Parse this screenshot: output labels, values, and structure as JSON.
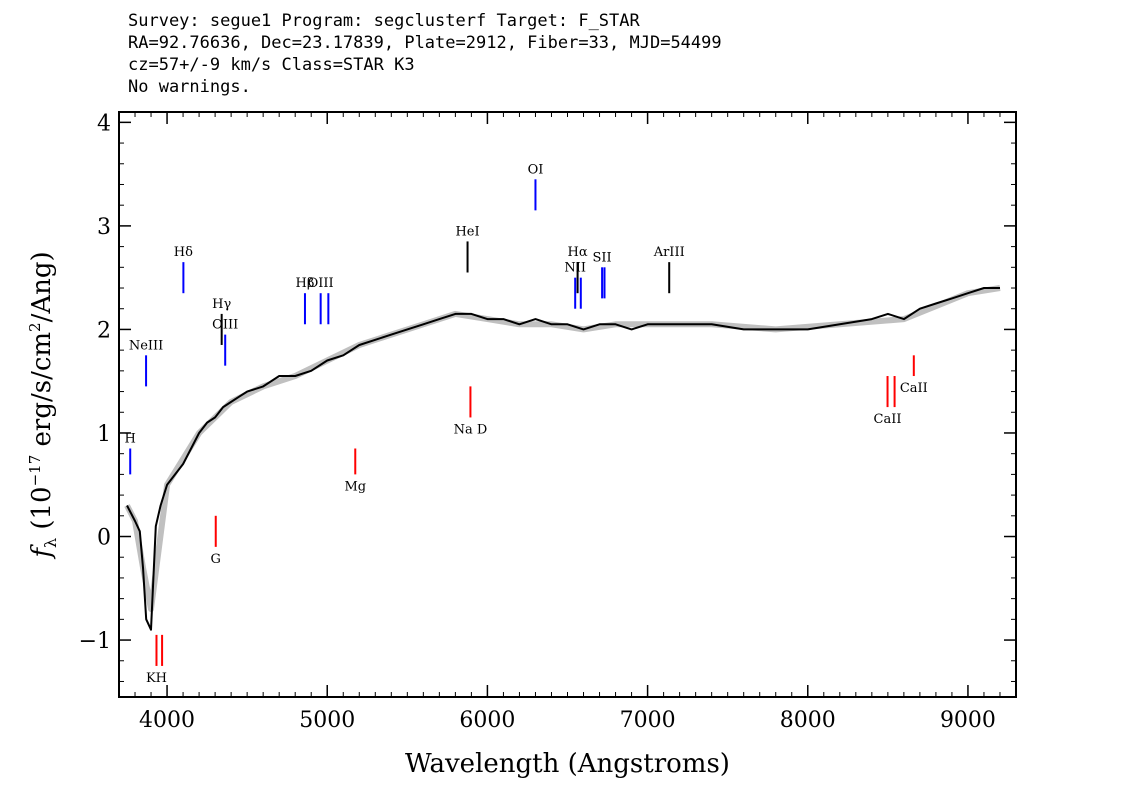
{
  "header": {
    "line1": "Survey: segue1 Program: segclusterf Target: F_STAR",
    "line2": "RA=92.76636, Dec=23.17839, Plate=2912, Fiber=33, MJD=54499",
    "line3": "cz=57+/-9 km/s Class=STAR K3",
    "line4": "No warnings."
  },
  "chart_data": {
    "type": "line",
    "xlabel": "Wavelength (Angstroms)",
    "ylabel": "f_λ (10^-17 erg/s/cm^2/Ang)",
    "xlim": [
      3700,
      9300
    ],
    "ylim": [
      -1.55,
      4.1
    ],
    "x_ticks": [
      4000,
      5000,
      6000,
      7000,
      8000,
      9000
    ],
    "y_ticks": [
      -1,
      0,
      1,
      2,
      3,
      4
    ],
    "grid": false,
    "series": [
      {
        "color": "#000000",
        "x": [
          3750,
          3800,
          3830,
          3850,
          3870,
          3900,
          3930,
          3960,
          4000,
          4050,
          4100,
          4150,
          4200,
          4250,
          4300,
          4350,
          4400,
          4450,
          4500,
          4600,
          4700,
          4800,
          4900,
          5000,
          5100,
          5200,
          5300,
          5400,
          5500,
          5600,
          5700,
          5800,
          5900,
          6000,
          6100,
          6200,
          6300,
          6400,
          6500,
          6600,
          6700,
          6800,
          6900,
          7000,
          7200,
          7400,
          7600,
          7800,
          8000,
          8200,
          8400,
          8500,
          8600,
          8700,
          8800,
          8900,
          9000,
          9100,
          9200
        ],
        "y": [
          0.3,
          0.15,
          0.05,
          -0.3,
          -0.8,
          -0.9,
          0.1,
          0.3,
          0.5,
          0.6,
          0.7,
          0.85,
          1.0,
          1.1,
          1.15,
          1.25,
          1.3,
          1.35,
          1.4,
          1.45,
          1.55,
          1.55,
          1.6,
          1.7,
          1.75,
          1.85,
          1.9,
          1.95,
          2.0,
          2.05,
          2.1,
          2.15,
          2.15,
          2.1,
          2.1,
          2.05,
          2.1,
          2.05,
          2.05,
          2.0,
          2.05,
          2.05,
          2.0,
          2.05,
          2.05,
          2.05,
          2.0,
          2.0,
          2.0,
          2.05,
          2.1,
          2.15,
          2.1,
          2.2,
          2.25,
          2.3,
          2.35,
          2.4,
          2.4
        ]
      },
      {
        "color": "#c0c0c0",
        "x": [
          3750,
          3800,
          3850,
          3900,
          4000,
          4200,
          4400,
          4600,
          4800,
          5000,
          5200,
          5400,
          5600,
          5800,
          6000,
          6200,
          6400,
          6600,
          6800,
          7000,
          7400,
          7800,
          8200,
          8600,
          9000,
          9200
        ],
        "y": [
          0.3,
          0.15,
          -0.3,
          -0.7,
          0.5,
          1.0,
          1.3,
          1.45,
          1.55,
          1.7,
          1.85,
          1.95,
          2.05,
          2.15,
          2.1,
          2.05,
          2.05,
          2.0,
          2.05,
          2.05,
          2.05,
          2.0,
          2.05,
          2.1,
          2.35,
          2.4
        ]
      }
    ],
    "line_labels": [
      {
        "label": "H",
        "x": 3770,
        "y_top": 0.85,
        "y_bottom": 0.6,
        "color": "#0000ff"
      },
      {
        "label": "NeIII",
        "x": 3869,
        "y_top": 1.75,
        "y_bottom": 1.45,
        "color": "#0000ff"
      },
      {
        "label": "Hδ",
        "x": 4102,
        "y_top": 2.65,
        "y_bottom": 2.35,
        "color": "#0000ff"
      },
      {
        "label": "Hγ",
        "x": 4341,
        "y_top": 2.15,
        "y_bottom": 1.85,
        "color": "#000000"
      },
      {
        "label": "OIII",
        "x": 4363,
        "y_top": 1.95,
        "y_bottom": 1.65,
        "color": "#0000ff"
      },
      {
        "label": "Hβ",
        "x": 4861,
        "y_top": 2.35,
        "y_bottom": 2.05,
        "color": "#0000ff"
      },
      {
        "label": "OIII",
        "x": 4959,
        "y_top": 2.35,
        "y_bottom": 2.05,
        "color": "#0000ff"
      },
      {
        "label": "OIII",
        "x": 5007,
        "y_top": 2.35,
        "y_bottom": 2.05,
        "color": "#0000ff"
      },
      {
        "label": "HeI",
        "x": 5876,
        "y_top": 2.85,
        "y_bottom": 2.55,
        "color": "#000000"
      },
      {
        "label": "OI",
        "x": 6300,
        "y_top": 3.45,
        "y_bottom": 3.15,
        "color": "#0000ff"
      },
      {
        "label": "NII",
        "x": 6548,
        "y_top": 2.5,
        "y_bottom": 2.2,
        "color": "#0000ff"
      },
      {
        "label": "Hα",
        "x": 6563,
        "y_top": 2.65,
        "y_bottom": 2.35,
        "color": "#000000"
      },
      {
        "label": "NII",
        "x": 6583,
        "y_top": 2.5,
        "y_bottom": 2.2,
        "color": "#0000ff"
      },
      {
        "label": "SII",
        "x": 6716,
        "y_top": 2.6,
        "y_bottom": 2.3,
        "color": "#0000ff"
      },
      {
        "label": "SII",
        "x": 6731,
        "y_top": 2.6,
        "y_bottom": 2.3,
        "color": "#0000ff"
      },
      {
        "label": "ArIII",
        "x": 7135,
        "y_top": 2.65,
        "y_bottom": 2.35,
        "color": "#000000"
      },
      {
        "label": "KH",
        "x": 3934,
        "y_top": -0.95,
        "y_bottom": -1.25,
        "color": "#ff0000"
      },
      {
        "label": "KH",
        "x": 3969,
        "y_top": -0.95,
        "y_bottom": -1.25,
        "color": "#ff0000"
      },
      {
        "label": "G",
        "x": 4304,
        "y_top": 0.2,
        "y_bottom": -0.1,
        "color": "#ff0000"
      },
      {
        "label": "Mg",
        "x": 5175,
        "y_top": 0.85,
        "y_bottom": 0.6,
        "color": "#ff0000"
      },
      {
        "label": "Na D",
        "x": 5894,
        "y_top": 1.45,
        "y_bottom": 1.15,
        "color": "#ff0000"
      },
      {
        "label": "CaII",
        "x": 8498,
        "y_top": 1.55,
        "y_bottom": 1.25,
        "color": "#ff0000"
      },
      {
        "label": "CaII",
        "x": 8542,
        "y_top": 1.55,
        "y_bottom": 1.25,
        "color": "#ff0000"
      },
      {
        "label": "CaII",
        "x": 8662,
        "y_top": 1.75,
        "y_bottom": 1.55,
        "color": "#ff0000"
      }
    ]
  }
}
